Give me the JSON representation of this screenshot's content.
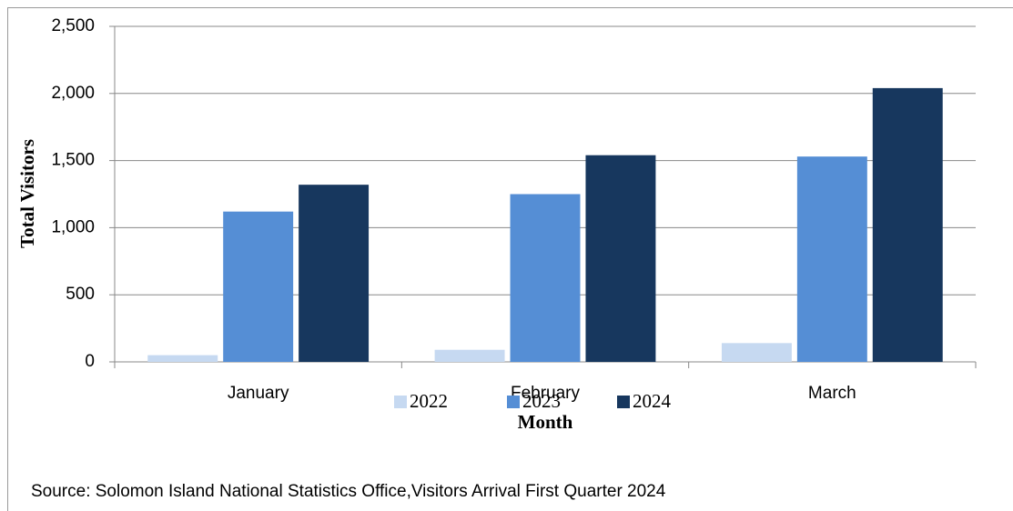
{
  "chart_data": {
    "type": "bar",
    "categories": [
      "January",
      "February",
      "March"
    ],
    "series": [
      {
        "name": "2022",
        "color": "#c6d9f1",
        "values": [
          50,
          90,
          140
        ]
      },
      {
        "name": "2023",
        "color": "#558ed5",
        "values": [
          1120,
          1250,
          1530
        ]
      },
      {
        "name": "2024",
        "color": "#17375e",
        "values": [
          1320,
          1540,
          2040
        ]
      }
    ],
    "ylabel": "Total Visitors",
    "xlabel": "Month",
    "ylim": [
      0,
      2500
    ],
    "yticks": [
      0,
      500,
      {
        "value": 1000,
        "label": "1,000"
      },
      {
        "value": 1500,
        "label": "1,500"
      },
      {
        "value": 2000,
        "label": "2,000"
      },
      {
        "value": 2500,
        "label": "2,500"
      }
    ],
    "grid": true,
    "legend": "bottom",
    "source": "Source: Solomon Island National Statistics Office,Visitors Arrival First Quarter 2024"
  }
}
